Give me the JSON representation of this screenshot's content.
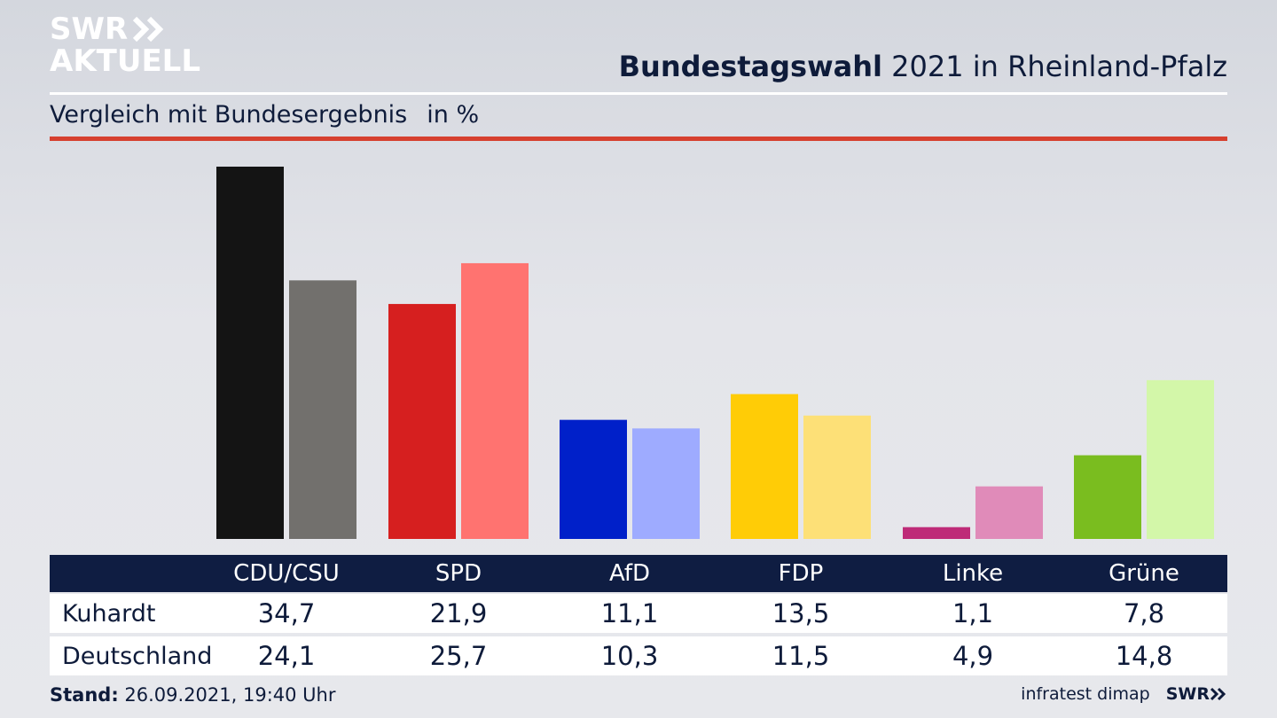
{
  "branding": {
    "logo_line1": "SWR",
    "logo_line2": "AKTUELL",
    "footer_logo": "SWR"
  },
  "header": {
    "title_bold": "Bundestagswahl",
    "title_rest": " 2021 in Rheinland-Pfalz",
    "subtitle": "Vergleich mit Bundesergebnis",
    "unit": "in %"
  },
  "footer": {
    "stand_label": "Stand:",
    "stand_value": " 26.09.2021, 19:40 Uhr",
    "source": "infratest dimap"
  },
  "chart_data": {
    "type": "bar",
    "title": "Bundestagswahl 2021 in Rheinland-Pfalz",
    "subtitle": "Vergleich mit Bundesergebnis",
    "ylabel": "in %",
    "categories": [
      "CDU/CSU",
      "SPD",
      "AfD",
      "FDP",
      "Linke",
      "Grüne"
    ],
    "series": [
      {
        "name": "Kuhardt",
        "values": [
          34.7,
          21.9,
          11.1,
          13.5,
          1.1,
          7.8
        ],
        "display": [
          "34,7",
          "21,9",
          "11,1",
          "13,5",
          "1,1",
          "7,8"
        ],
        "colors": [
          "#141414",
          "#d61f1f",
          "#0020c9",
          "#ffcc06",
          "#be2b78",
          "#7abd1f"
        ]
      },
      {
        "name": "Deutschland",
        "values": [
          24.1,
          25.7,
          10.3,
          11.5,
          4.9,
          14.8
        ],
        "display": [
          "24,1",
          "25,7",
          "10,3",
          "11,5",
          "4,9",
          "14,8"
        ],
        "colors": [
          "#72706d",
          "#ff7370",
          "#9eabff",
          "#fde077",
          "#e08bb9",
          "#d3f7a9"
        ]
      }
    ],
    "grid": false,
    "legend": "table-below"
  }
}
